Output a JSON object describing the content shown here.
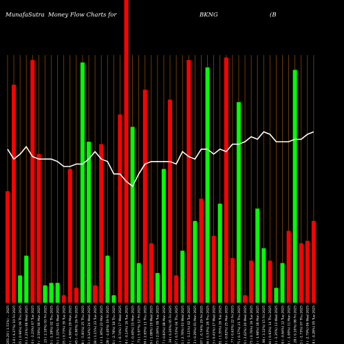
{
  "header": {
    "site": "MunafaSutra",
    "caption": "Money Flow  Charts for",
    "symbol": "BKNG",
    "company_fragment": "(B"
  },
  "chart_data": {
    "type": "bar",
    "title": "MunafaSutra  Money Flow  Charts for BKNG (B",
    "grid": "vertical dark-orange lines at each bar",
    "ylim": [
      0,
      100
    ],
    "colors": {
      "up": "#00ff00",
      "down": "#ff0000",
      "line": "#ffffff",
      "grid": "#8a4a00",
      "background": "#000000"
    },
    "categories": [
      "5201.20 ( 1.51%) ... 2025",
      "5303.6 ( 6.27%) 10 Fri 2025",
      "5244.65 ( 0.96%) 09 Thu 2025",
      "5294.40 ( 2.21%) 08 Wed 2025",
      "0 ( -2.23%) 07 Tue 2025",
      "5180.52 ( -2.59%) 06 Mon 2025",
      "5057.15 ( 2.10%) 03 Fri 2025",
      "5057.15 ( -1.28%) 02 Thu 2025",
      "5077.75 ( 1.32%) 01 Wed 2025",
      "5033.05 ( 0.73%) 30 Tue 2025",
      "4990.55 ( -4.96%) 29 Mon 2025",
      "5023.45 ( -0.90%) 26 Fri 2025",
      "4903.48 ( -5.81%) 25 Thu 2025",
      "5159.61 ( 0.14%) 24 Wed 2025",
      "5190.08 ( 1.15%) 23 Tue 2025",
      "5141.53 ( 1.30%) 22 Mon 2025",
      "5055.28 ( -4.40%) 19 Fri 2025",
      "5064.60 ( -2.78%) 18 Thu 2025",
      "4998.71 ( -0.74%) 17 Wed 2025",
      "4943.09 ( -0.14%) 16 Tue 2025",
      "4988.77 ( -0.40%) 15 Mon 2025",
      "4905.71 ( 5.97%) 12 Fri 2025",
      "4761.89 ( 2.65%) 11 Thu 2025",
      "4750.39 ( 1.08%) 10 Wed 2025",
      "4785.75 ( 2.04%) 09 Tue 2025",
      "4691.07 ( 0.83%) 08 Mon 2025",
      "4652.39 ( 0.20%) 05 Fri 2025",
      "4642.67 ( 0.53%) 04 Thu 2025",
      "4617.91 ( 2.78%) 03 Wed 2025",
      "4492.95 ( -1.11%) 02 Tue 2025",
      "4543.23 ( 0.29%) 01 Mon 2025",
      "4530.07 ( -0.74%) 29 Fri 2025",
      "4564.06 ( 0.53%) 28 Thu 2025",
      "4540.23 ( 0.41%) 27 Wed 2025",
      "4521.81 ( 1.35%) 26 Tue 2025",
      "4461.73 ( -0.82%) 25 Mon 2025",
      "4498.77 ( 0.63%) 22 Fri 2025",
      "4470.75 ( 0.37%) 21 Thu 2025",
      "4454.20 ( 2.62%) 20 Wed 2025",
      "4340.75 ( 0.76%) 19 Tue 2025",
      "4307.85 ( -1.98%) 18 Mon 2025",
      "4394.96 ( 3.12%) 15 Fri 2025",
      "4261.94 ( 0.93%) 14 Thu 2025",
      "4222.00 ( -1.35%) 13 Wed 2025",
      "4280.00 ( -0.64%) 12 Tue 2025",
      "4307.71 ( -1.00%) 11 Mon 2025",
      "4351.28 ( 0.10%) 08 Fri 2025",
      "4358.11 ( -1.73%) 07 Thu 2025",
      "4434.88 ( -2.79%) 06 Wed 2025",
      "4519.18 ( -0.28%) 05 Tue 2025"
    ],
    "series": [
      {
        "kind": "bars",
        "values": [
          45,
          88,
          11,
          19,
          98,
          60,
          7,
          8,
          8,
          3,
          54,
          6,
          97,
          65,
          7,
          64,
          19,
          3,
          76,
          100,
          71,
          16,
          86,
          24,
          12,
          54,
          82,
          11,
          21,
          98,
          33,
          42,
          95,
          27,
          40,
          99,
          18,
          81,
          3,
          17,
          38,
          22,
          17,
          6,
          16,
          29,
          94,
          24,
          25,
          33
        ],
        "colors": [
          "red",
          "red",
          "green",
          "green",
          "red",
          "red",
          "green",
          "green",
          "green",
          "red",
          "red",
          "red",
          "green",
          "green",
          "red",
          "red",
          "green",
          "green",
          "red",
          "red",
          "green",
          "green",
          "red",
          "red",
          "green",
          "green",
          "red",
          "red",
          "green",
          "red",
          "green",
          "red",
          "green",
          "red",
          "green",
          "red",
          "red",
          "green",
          "red",
          "red",
          "green",
          "green",
          "red",
          "green",
          "green",
          "red",
          "green",
          "red",
          "red",
          "red"
        ]
      },
      {
        "kind": "line",
        "values": [
          62,
          58,
          60,
          63,
          59,
          58,
          58,
          58,
          57,
          55,
          55,
          56,
          56,
          58,
          61,
          58,
          57,
          52,
          52,
          49,
          47,
          52,
          56,
          57,
          57,
          57,
          57,
          56,
          61,
          59,
          58,
          62,
          62,
          60,
          62,
          61,
          64,
          64,
          65,
          67,
          66,
          69,
          68,
          65,
          65,
          65,
          66,
          66,
          68,
          69
        ]
      }
    ]
  }
}
